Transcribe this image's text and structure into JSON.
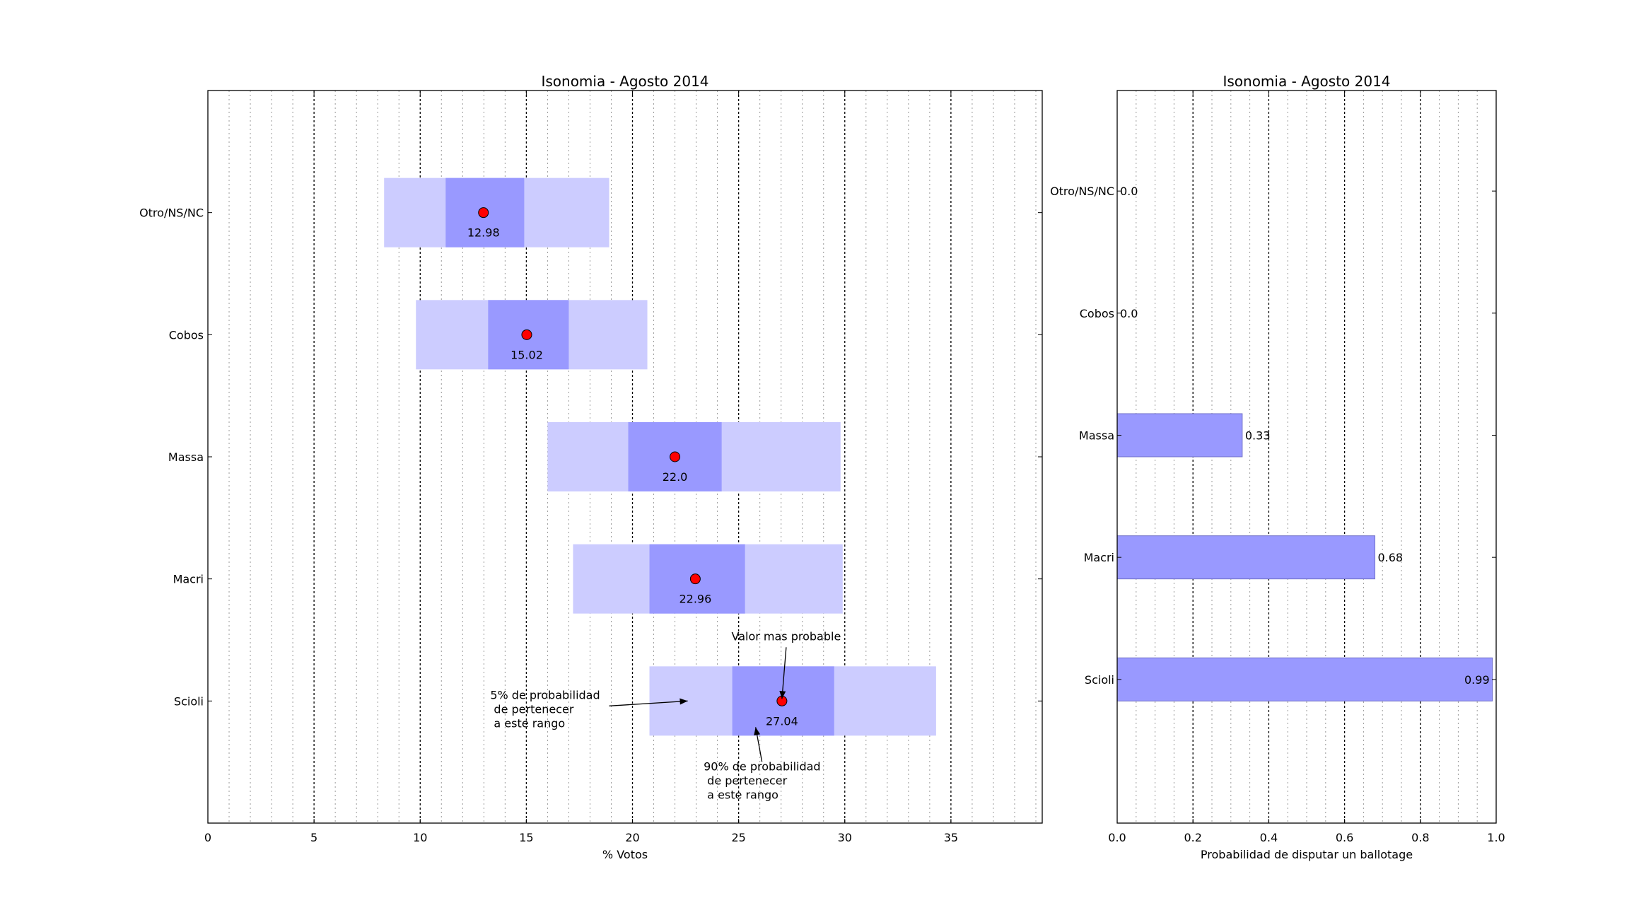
{
  "chart_data": [
    {
      "type": "range",
      "title": "Isonomia - Agosto 2014",
      "xlabel": "% Votos",
      "ylabel": "",
      "xlim": [
        0,
        39.3
      ],
      "xticks": [
        0,
        5,
        10,
        15,
        20,
        25,
        30,
        35
      ],
      "grid": "x-dashed",
      "categories": [
        "Otro/NS/NC",
        "Cobos",
        "Massa",
        "Macri",
        "Scioli"
      ],
      "series": [
        {
          "values": [
            12.98,
            15.02,
            22.0,
            22.96,
            27.04
          ],
          "labels": [
            "12.98",
            "15.02",
            "22.0",
            "22.96",
            "27.04"
          ],
          "outer_ranges": [
            [
              8.3,
              18.9
            ],
            [
              9.8,
              20.7
            ],
            [
              16.0,
              29.8
            ],
            [
              17.2,
              29.9
            ],
            [
              20.8,
              34.3
            ]
          ],
          "inner_ranges": [
            [
              11.2,
              14.9
            ],
            [
              13.2,
              17.0
            ],
            [
              19.8,
              24.2
            ],
            [
              20.8,
              25.3
            ],
            [
              24.7,
              29.5
            ]
          ]
        }
      ],
      "annotations": [
        {
          "text": "Valor mas probable",
          "category": "Scioli",
          "target_x": 27.04
        },
        {
          "text": "5% de probabilidad\n de pertenecer\n a este rango",
          "category": "Scioli",
          "target_x": 22.6
        },
        {
          "text": "90% de probabilidad\n de pertenecer\n a este rango",
          "category": "Scioli",
          "target_x": 25.8
        }
      ],
      "colors": {
        "outer": "#ccccff",
        "inner": "#9999ff",
        "point": "#ff0000"
      }
    },
    {
      "type": "bar",
      "orientation": "horizontal",
      "title": "Isonomia - Agosto 2014",
      "xlabel": "Probabilidad de disputar un ballotage",
      "ylabel": "",
      "xlim": [
        0,
        1.0
      ],
      "xticks": [
        0.0,
        0.2,
        0.4,
        0.6,
        0.8,
        1.0
      ],
      "xtick_labels": [
        "0.0",
        "0.2",
        "0.4",
        "0.6",
        "0.8",
        "1.0"
      ],
      "grid": "x-dashed",
      "categories": [
        "Otro/NS/NC",
        "Cobos",
        "Massa",
        "Macri",
        "Scioli"
      ],
      "series": [
        {
          "values": [
            0.0,
            0.0,
            0.33,
            0.68,
            0.99
          ],
          "labels": [
            "0.0",
            "0.0",
            "0.33",
            "0.68",
            "0.99"
          ]
        }
      ],
      "colors": {
        "bar": "#9999ff",
        "edge": "#7070c8"
      }
    }
  ]
}
